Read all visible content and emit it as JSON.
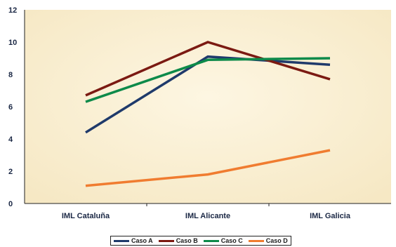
{
  "chart_data": {
    "type": "line",
    "categories": [
      "IML Cataluña",
      "IML Alicante",
      "IML Galicia"
    ],
    "series": [
      {
        "name": "Caso A",
        "color": "#1f3a6b",
        "values": [
          4.4,
          9.1,
          8.6
        ]
      },
      {
        "name": "Caso B",
        "color": "#7b1a12",
        "values": [
          6.7,
          10.0,
          7.7
        ]
      },
      {
        "name": "Caso C",
        "color": "#0d8a4a",
        "values": [
          6.3,
          8.9,
          9.0
        ]
      },
      {
        "name": "Caso D",
        "color": "#f07c30",
        "values": [
          1.1,
          1.8,
          3.3
        ]
      }
    ],
    "yticks": [
      "0",
      "2",
      "4",
      "6",
      "8",
      "10",
      "12"
    ],
    "ylim": [
      0,
      12
    ],
    "title": "",
    "xlabel": "",
    "ylabel": "",
    "grid": false,
    "legend_position": "bottom",
    "plot_background": "#fbf1d6"
  }
}
